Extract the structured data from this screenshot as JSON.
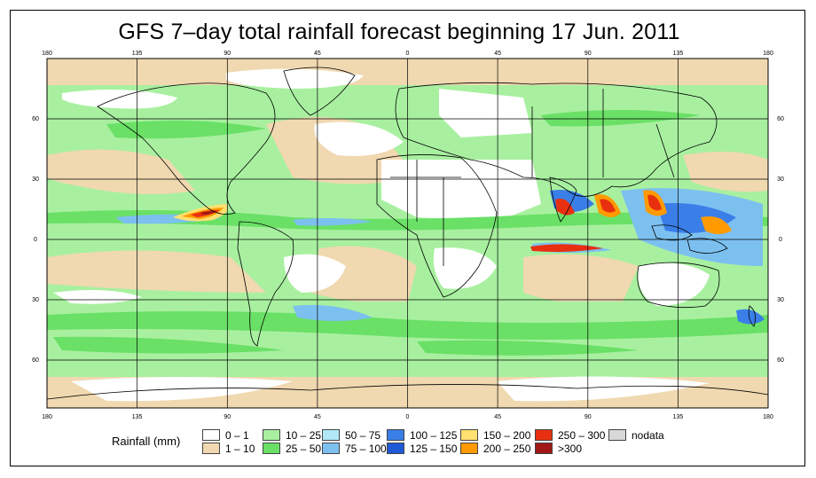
{
  "title": "GFS 7–day total rainfall forecast beginning 17 Jun. 2011",
  "lon_ticks": [
    "180",
    "135",
    "90",
    "45",
    "0",
    "45",
    "90",
    "135",
    "180"
  ],
  "lat_ticks": [
    "60",
    "30",
    "0",
    "30",
    "60"
  ],
  "legend": {
    "title": "Rainfall (mm)",
    "entries": [
      {
        "label": "0 – 1",
        "color": "#ffffff"
      },
      {
        "label": "1 – 10",
        "color": "#f0d8b0"
      },
      {
        "label": "10 – 25",
        "color": "#a8f0a0"
      },
      {
        "label": "25 – 50",
        "color": "#6ae066"
      },
      {
        "label": "50 – 75",
        "color": "#b0e8f8"
      },
      {
        "label": "75 – 100",
        "color": "#7cc0f0"
      },
      {
        "label": "100 – 125",
        "color": "#3a7ee8"
      },
      {
        "label": "125 – 150",
        "color": "#1e5ad8"
      },
      {
        "label": "150 – 200",
        "color": "#ffe070"
      },
      {
        "label": "200 – 250",
        "color": "#ff9a00"
      },
      {
        "label": "250 – 300",
        "color": "#e83010"
      },
      {
        "label": ">300",
        "color": "#a01818"
      },
      {
        "label": "nodata",
        "color": "#d8d8d8"
      }
    ]
  }
}
